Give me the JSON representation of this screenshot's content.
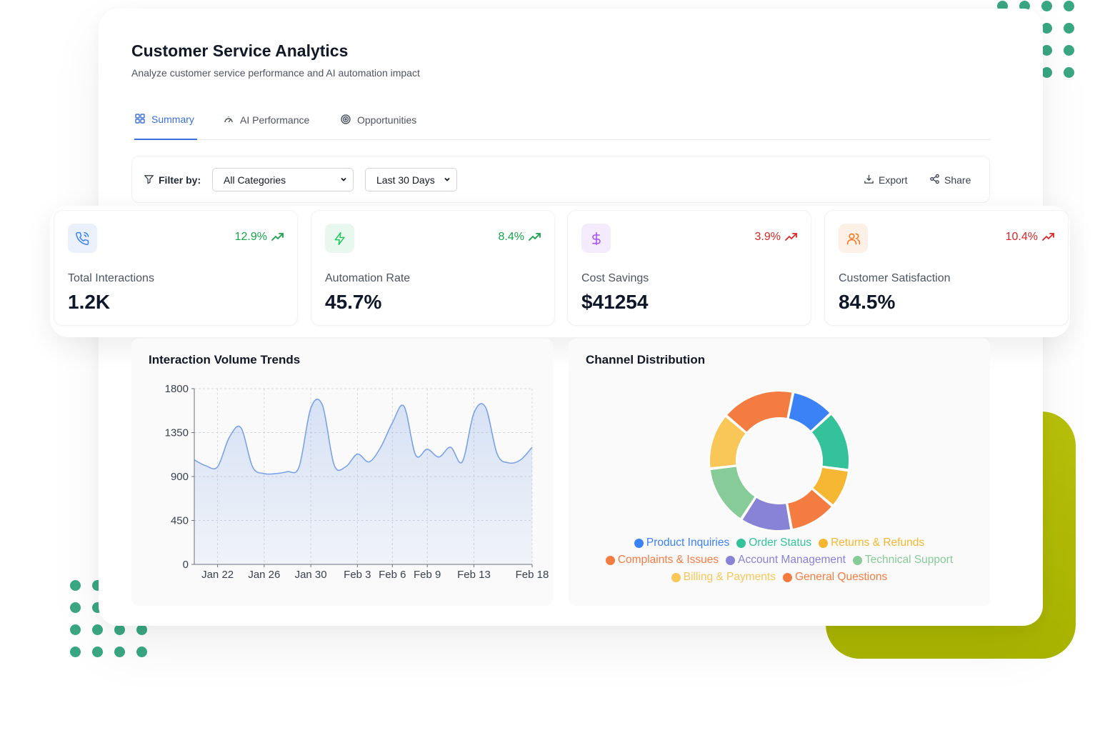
{
  "header": {
    "title": "Customer Service Analytics",
    "subtitle": "Analyze customer service performance and AI automation impact"
  },
  "tabs": [
    {
      "label": "Summary",
      "active": true,
      "icon": "grid-icon"
    },
    {
      "label": "AI Performance",
      "active": false,
      "icon": "gauge-icon"
    },
    {
      "label": "Opportunities",
      "active": false,
      "icon": "target-icon"
    }
  ],
  "filters": {
    "label": "Filter by:",
    "category": "All Categories",
    "date_range": "Last 30 Days",
    "export_label": "Export",
    "share_label": "Share"
  },
  "stats": [
    {
      "label": "Total Interactions",
      "value": "1.2K",
      "change": "12.9%",
      "change_color": "#16a34a",
      "icon": "phone-icon",
      "icon_color": "#3b82f6",
      "icon_bg": "#eaf1fd"
    },
    {
      "label": "Automation Rate",
      "value": "45.7%",
      "change": "8.4%",
      "change_color": "#16a34a",
      "icon": "lightning-icon",
      "icon_color": "#22c55e",
      "icon_bg": "#e9f8ee"
    },
    {
      "label": "Cost Savings",
      "value": "$41254",
      "change": "3.9%",
      "change_color": "#dc2626",
      "icon": "dollar-icon",
      "icon_color": "#a855f7",
      "icon_bg": "#f4ecfd"
    },
    {
      "label": "Customer Satisfaction",
      "value": "84.5%",
      "change": "10.4%",
      "change_color": "#dc2626",
      "icon": "users-icon",
      "icon_color": "#f97316",
      "icon_bg": "#fdf0e6"
    }
  ],
  "colors": {
    "accent": "#3b6fd9",
    "dots": "#3aa783",
    "lime": "#b3bd06"
  },
  "chart_data": [
    {
      "type": "area",
      "title": "Interaction Volume Trends",
      "ylim": [
        0,
        1800
      ],
      "yticks": [
        0,
        450,
        900,
        1350,
        1800
      ],
      "x_ticks": [
        "Jan 22",
        "Jan 26",
        "Jan 30",
        "Feb 3",
        "Feb 6",
        "Feb 9",
        "Feb 13",
        "Feb 18"
      ],
      "x_range": [
        "Jan 20",
        "Feb 18"
      ],
      "grid": true,
      "x": [
        "Jan 20",
        "Jan 21",
        "Jan 22",
        "Jan 23",
        "Jan 24",
        "Jan 25",
        "Jan 26",
        "Jan 27",
        "Jan 28",
        "Jan 29",
        "Jan 30",
        "Jan 31",
        "Feb 1",
        "Feb 2",
        "Feb 3",
        "Feb 4",
        "Feb 5",
        "Feb 6",
        "Feb 7",
        "Feb 8",
        "Feb 9",
        "Feb 10",
        "Feb 11",
        "Feb 12",
        "Feb 13",
        "Feb 14",
        "Feb 15",
        "Feb 16",
        "Feb 17",
        "Feb 18"
      ],
      "values": [
        1070,
        1010,
        1000,
        1300,
        1400,
        1000,
        930,
        930,
        950,
        1000,
        1600,
        1630,
        1020,
        1000,
        1130,
        1050,
        1200,
        1450,
        1620,
        1120,
        1180,
        1100,
        1200,
        1050,
        1550,
        1610,
        1130,
        1040,
        1070,
        1200
      ],
      "color": "#7ba3e8"
    },
    {
      "type": "pie",
      "title": "Channel Distribution",
      "donut": true,
      "legend_position": "bottom",
      "segments": [
        {
          "name": "Product Inquiries",
          "value": 10,
          "color": "#3b82f6"
        },
        {
          "name": "Order Status",
          "value": 14,
          "color": "#34c29a"
        },
        {
          "name": "Returns & Refunds",
          "value": 9,
          "color": "#f5b731"
        },
        {
          "name": "Complaints & Issues",
          "value": 11,
          "color": "#f57c41"
        },
        {
          "name": "Account Management",
          "value": 12,
          "color": "#8883d6"
        },
        {
          "name": "Technical Support",
          "value": 14,
          "color": "#86cb98"
        },
        {
          "name": "Billing & Payments",
          "value": 13,
          "color": "#f8c758"
        },
        {
          "name": "General Questions",
          "value": 17,
          "color": "#f57c41"
        }
      ],
      "legend_rows": [
        [
          "Product Inquiries",
          "Order Status",
          "Returns & Refunds"
        ],
        [
          "Complaints & Issues",
          "Account Management",
          "Technical Support"
        ],
        [
          "Billing & Payments",
          "General Questions"
        ]
      ]
    }
  ]
}
